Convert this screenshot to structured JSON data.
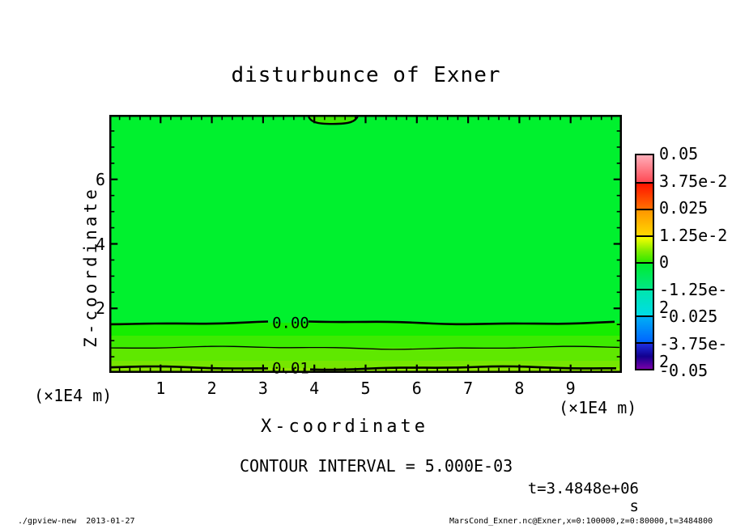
{
  "title": "disturbunce of Exner",
  "plot": {
    "field_color": "#00F12E",
    "top_lobe_fill_color": "#3DEB00",
    "band_colors": [
      "#16ED00",
      "#3DEB00",
      "#5FE800",
      "#76E600",
      "#8EE600"
    ],
    "contour_line_labels": {
      "zero": "0.00",
      "one": "0.01"
    }
  },
  "x_axis": {
    "title": "X-coordinate",
    "unit_label_left": "(×1E4 m)",
    "unit_label_right": "(×1E4 m)",
    "tick_labels": [
      "1",
      "2",
      "3",
      "4",
      "5",
      "6",
      "7",
      "8",
      "9"
    ]
  },
  "y_axis": {
    "title": "Z-coordinate",
    "tick_labels": [
      "2",
      "4",
      "6"
    ]
  },
  "colorbar": {
    "tick_labels": [
      "0.05",
      "3.75e-2",
      "0.025",
      "1.25e-2",
      "0",
      "-1.25e-2",
      "-0.025",
      "-3.75e-2",
      "-0.05"
    ],
    "segments": [
      {
        "stops": [
          "#FFAEB9",
          "#FF4A55"
        ]
      },
      {
        "stops": [
          "#FF1400",
          "#FF6E00"
        ]
      },
      {
        "stops": [
          "#FF9600",
          "#FFD700"
        ]
      },
      {
        "stops": [
          "#FAFF00",
          "#8CEE00",
          "#30E800"
        ]
      },
      {
        "stops": [
          "#00EC30",
          "#00E685"
        ]
      },
      {
        "stops": [
          "#00E6AE",
          "#00DCE6"
        ]
      },
      {
        "stops": [
          "#00AEF5",
          "#0064FF"
        ]
      },
      {
        "stops": [
          "#1E2FE0",
          "#12008F",
          "#7700A8"
        ]
      }
    ]
  },
  "annotations": {
    "contour_interval": "CONTOUR INTERVAL = 5.000E-03",
    "time_label": "t=3.4848e+06 s"
  },
  "footer": {
    "left": "./gpview-new  2013-01-27",
    "right": "MarsCond_Exner.nc@Exner,x=0:100000,z=0:80000,t=3484800"
  },
  "chart_data": {
    "type": "heatmap",
    "title": "disturbunce of Exner",
    "xlabel": "X-coordinate",
    "ylabel": "Z-coordinate",
    "x_units": "×1E4 m",
    "y_units": "×1E4 m",
    "xlim": [
      0,
      10
    ],
    "ylim": [
      0,
      8
    ],
    "x_ticks": [
      1,
      2,
      3,
      4,
      5,
      6,
      7,
      8,
      9
    ],
    "y_ticks": [
      2,
      4,
      6
    ],
    "colorbar_range": [
      -0.05,
      0.05
    ],
    "colorbar_tick_values": [
      0.05,
      0.0375,
      0.025,
      0.0125,
      0,
      -0.0125,
      -0.025,
      -0.0375,
      -0.05
    ],
    "contour_interval": 0.005,
    "visible_contours": [
      {
        "value": 0.0,
        "label": "0.00",
        "z_position": 1.55
      },
      {
        "value": 0.005,
        "label": null,
        "z_position": 0.78
      },
      {
        "value": 0.01,
        "label": "0.01",
        "z_position": 0.15
      }
    ],
    "top_feature": {
      "value": 0.0,
      "x_range": [
        3.9,
        4.7
      ],
      "z_range": [
        7.75,
        8.0
      ],
      "description": "small closed 0.00 contour attached to top boundary"
    },
    "field_summary": "Exner function disturbance ~0 over most of the domain (uniform green), increasing to ~0.012 in a shallow layer near z=0; time t=3.4848e+06 s"
  }
}
